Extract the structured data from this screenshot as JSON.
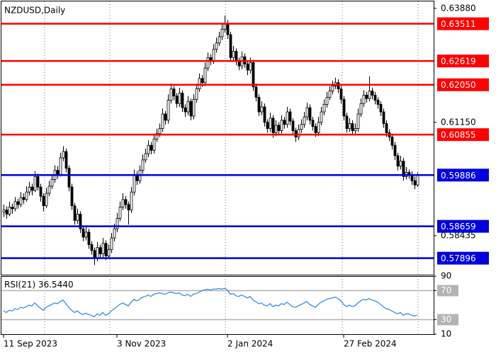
{
  "chart_data": {
    "type": "candlestick",
    "title": "NZDUSD,Daily",
    "up_color": "#ffffff",
    "down_color": "#000000",
    "xlim": [
      -1.25,
      151.75
    ],
    "xticks": [
      {
        "value": 0,
        "label": "11 Sep 2023"
      },
      {
        "value": 40,
        "label": "3 Nov 2023"
      },
      {
        "value": 79,
        "label": "2 Jan 2024"
      },
      {
        "value": 120,
        "label": "27 Feb 2024"
      }
    ],
    "ylim": [
      0.575,
      0.6408
    ],
    "yticks": [
      {
        "value": 0.6388,
        "label": "0.63880"
      },
      {
        "value": 0.6115,
        "label": "0.61150"
      },
      0.58435
    ],
    "levels": [
      {
        "value": 0.63511,
        "color": "#ff0000"
      },
      {
        "value": 0.62619,
        "color": "#ff0000"
      },
      {
        "value": 0.6205,
        "label": "0.62050",
        "color": "#ff0000"
      },
      {
        "value": 0.60855,
        "color": "#ff0000"
      },
      {
        "value": 0.59886,
        "color": "#0000dd"
      },
      {
        "value": 0.58659,
        "color": "#0000dd"
      },
      {
        "value": 0.57896,
        "color": "#0000dd"
      }
    ],
    "candles": [
      [
        0.59,
        0.5918,
        0.5888,
        0.5905
      ],
      [
        0.5905,
        0.5914,
        0.5884,
        0.5895
      ],
      [
        0.5895,
        0.5925,
        0.589,
        0.5912
      ],
      [
        0.5912,
        0.592,
        0.5896,
        0.5908
      ],
      [
        0.5908,
        0.5936,
        0.5902,
        0.5925
      ],
      [
        0.5925,
        0.5932,
        0.5908,
        0.5918
      ],
      [
        0.5918,
        0.5948,
        0.5912,
        0.5935
      ],
      [
        0.5935,
        0.5945,
        0.592,
        0.593
      ],
      [
        0.593,
        0.5962,
        0.5925,
        0.5948
      ],
      [
        0.5948,
        0.5972,
        0.594,
        0.596
      ],
      [
        0.596,
        0.5968,
        0.594,
        0.5952
      ],
      [
        0.5952,
        0.5998,
        0.5948,
        0.5985
      ],
      [
        0.5985,
        0.5992,
        0.5952,
        0.596
      ],
      [
        0.596,
        0.5968,
        0.5925,
        0.5938
      ],
      [
        0.5938,
        0.5945,
        0.5902,
        0.5915
      ],
      [
        0.5915,
        0.5958,
        0.591,
        0.5945
      ],
      [
        0.5945,
        0.5975,
        0.5938,
        0.5962
      ],
      [
        0.5962,
        0.599,
        0.5955,
        0.5978
      ],
      [
        0.5978,
        0.6012,
        0.597,
        0.6
      ],
      [
        0.6,
        0.601,
        0.598,
        0.599
      ],
      [
        0.599,
        0.6042,
        0.5985,
        0.603
      ],
      [
        0.603,
        0.6058,
        0.6022,
        0.6045
      ],
      [
        0.6045,
        0.6052,
        0.5995,
        0.6005
      ],
      [
        0.6005,
        0.6012,
        0.595,
        0.596
      ],
      [
        0.596,
        0.5968,
        0.5905,
        0.5915
      ],
      [
        0.5915,
        0.5922,
        0.587,
        0.588
      ],
      [
        0.588,
        0.5908,
        0.5872,
        0.5895
      ],
      [
        0.5895,
        0.5902,
        0.585,
        0.586
      ],
      [
        0.586,
        0.5868,
        0.583,
        0.584
      ],
      [
        0.584,
        0.5865,
        0.5832,
        0.5852
      ],
      [
        0.5852,
        0.586,
        0.5812,
        0.5822
      ],
      [
        0.5822,
        0.583,
        0.5798,
        0.5808
      ],
      [
        0.5808,
        0.5815,
        0.5773,
        0.579
      ],
      [
        0.579,
        0.5828,
        0.5782,
        0.5815
      ],
      [
        0.5815,
        0.5822,
        0.579,
        0.58
      ],
      [
        0.58,
        0.5838,
        0.5792,
        0.5825
      ],
      [
        0.5825,
        0.5832,
        0.5785,
        0.5795
      ],
      [
        0.5795,
        0.5822,
        0.5788,
        0.581
      ],
      [
        0.581,
        0.585,
        0.5802,
        0.5838
      ],
      [
        0.5838,
        0.5872,
        0.583,
        0.586
      ],
      [
        0.586,
        0.5898,
        0.5852,
        0.5885
      ],
      [
        0.5885,
        0.5925,
        0.5878,
        0.5912
      ],
      [
        0.5912,
        0.5945,
        0.5905,
        0.593
      ],
      [
        0.593,
        0.5938,
        0.5908,
        0.5918
      ],
      [
        0.5918,
        0.5925,
        0.587,
        0.5905
      ],
      [
        0.5905,
        0.596,
        0.5898,
        0.5948
      ],
      [
        0.5948,
        0.6002,
        0.594,
        0.599
      ],
      [
        0.599,
        0.5998,
        0.5965,
        0.5975
      ],
      [
        0.5975,
        0.6012,
        0.5968,
        0.6
      ],
      [
        0.6,
        0.6038,
        0.5992,
        0.6025
      ],
      [
        0.6025,
        0.6052,
        0.6018,
        0.604
      ],
      [
        0.604,
        0.6072,
        0.6032,
        0.606
      ],
      [
        0.606,
        0.6068,
        0.6038,
        0.6048
      ],
      [
        0.6048,
        0.6088,
        0.604,
        0.6075
      ],
      [
        0.6075,
        0.61,
        0.6068,
        0.6088
      ],
      [
        0.6088,
        0.6112,
        0.608,
        0.61
      ],
      [
        0.61,
        0.6148,
        0.6092,
        0.6135
      ],
      [
        0.6135,
        0.6142,
        0.611,
        0.612
      ],
      [
        0.612,
        0.6182,
        0.6112,
        0.6168
      ],
      [
        0.6168,
        0.6208,
        0.616,
        0.6195
      ],
      [
        0.6195,
        0.6202,
        0.6168,
        0.6178
      ],
      [
        0.6178,
        0.6185,
        0.615,
        0.616
      ],
      [
        0.616,
        0.6198,
        0.6152,
        0.6185
      ],
      [
        0.6185,
        0.6192,
        0.614,
        0.615
      ],
      [
        0.615,
        0.6158,
        0.6128,
        0.614
      ],
      [
        0.614,
        0.6178,
        0.6132,
        0.6165
      ],
      [
        0.6165,
        0.6172,
        0.612,
        0.613
      ],
      [
        0.613,
        0.6182,
        0.6122,
        0.617
      ],
      [
        0.617,
        0.6208,
        0.6162,
        0.6195
      ],
      [
        0.6195,
        0.6232,
        0.6188,
        0.622
      ],
      [
        0.622,
        0.6228,
        0.62,
        0.621
      ],
      [
        0.621,
        0.6258,
        0.6202,
        0.6245
      ],
      [
        0.6245,
        0.6282,
        0.6238,
        0.627
      ],
      [
        0.627,
        0.6278,
        0.6252,
        0.6262
      ],
      [
        0.6262,
        0.6302,
        0.6255,
        0.629
      ],
      [
        0.629,
        0.6318,
        0.6282,
        0.6305
      ],
      [
        0.6305,
        0.6332,
        0.6298,
        0.632
      ],
      [
        0.632,
        0.6352,
        0.6312,
        0.6338
      ],
      [
        0.6338,
        0.6371,
        0.633,
        0.635
      ],
      [
        0.635,
        0.636,
        0.6315,
        0.6325
      ],
      [
        0.6325,
        0.6332,
        0.626,
        0.627
      ],
      [
        0.627,
        0.6298,
        0.6262,
        0.6285
      ],
      [
        0.6285,
        0.6292,
        0.6252,
        0.6262
      ],
      [
        0.6262,
        0.627,
        0.624,
        0.625
      ],
      [
        0.625,
        0.6285,
        0.6242,
        0.6272
      ],
      [
        0.6272,
        0.628,
        0.6245,
        0.6255
      ],
      [
        0.6255,
        0.6262,
        0.6228,
        0.624
      ],
      [
        0.624,
        0.627,
        0.6232,
        0.6258
      ],
      [
        0.6258,
        0.6265,
        0.619,
        0.62
      ],
      [
        0.62,
        0.6208,
        0.6165,
        0.6175
      ],
      [
        0.6175,
        0.6182,
        0.613,
        0.614
      ],
      [
        0.614,
        0.6165,
        0.6132,
        0.6152
      ],
      [
        0.6152,
        0.616,
        0.6105,
        0.6115
      ],
      [
        0.6115,
        0.6122,
        0.609,
        0.61
      ],
      [
        0.61,
        0.6138,
        0.6092,
        0.6125
      ],
      [
        0.6125,
        0.6132,
        0.6078,
        0.609
      ],
      [
        0.609,
        0.612,
        0.6082,
        0.6108
      ],
      [
        0.6108,
        0.6115,
        0.6085,
        0.6095
      ],
      [
        0.6095,
        0.6132,
        0.6088,
        0.612
      ],
      [
        0.612,
        0.6128,
        0.61,
        0.611
      ],
      [
        0.611,
        0.6152,
        0.6102,
        0.614
      ],
      [
        0.614,
        0.6148,
        0.6108,
        0.6118
      ],
      [
        0.6118,
        0.6125,
        0.6085,
        0.6095
      ],
      [
        0.6095,
        0.6102,
        0.6068,
        0.608
      ],
      [
        0.608,
        0.611,
        0.6072,
        0.6098
      ],
      [
        0.6098,
        0.6122,
        0.609,
        0.611
      ],
      [
        0.611,
        0.614,
        0.6102,
        0.6128
      ],
      [
        0.6128,
        0.6162,
        0.612,
        0.615
      ],
      [
        0.615,
        0.6158,
        0.611,
        0.612
      ],
      [
        0.612,
        0.6128,
        0.6095,
        0.6105
      ],
      [
        0.6105,
        0.6112,
        0.608,
        0.609
      ],
      [
        0.609,
        0.6128,
        0.6082,
        0.6115
      ],
      [
        0.6115,
        0.6152,
        0.6108,
        0.614
      ],
      [
        0.614,
        0.617,
        0.6132,
        0.6158
      ],
      [
        0.6158,
        0.6188,
        0.615,
        0.6175
      ],
      [
        0.6175,
        0.6202,
        0.6168,
        0.619
      ],
      [
        0.619,
        0.6215,
        0.6182,
        0.6202
      ],
      [
        0.6202,
        0.6222,
        0.6195,
        0.621
      ],
      [
        0.621,
        0.6218,
        0.6185,
        0.6195
      ],
      [
        0.6195,
        0.6202,
        0.616,
        0.617
      ],
      [
        0.617,
        0.6178,
        0.612,
        0.613
      ],
      [
        0.613,
        0.6138,
        0.609,
        0.61
      ],
      [
        0.61,
        0.6125,
        0.6092,
        0.6112
      ],
      [
        0.6112,
        0.612,
        0.6085,
        0.6095
      ],
      [
        0.6095,
        0.6112,
        0.6088,
        0.61
      ],
      [
        0.61,
        0.6148,
        0.6092,
        0.6135
      ],
      [
        0.6135,
        0.6172,
        0.6128,
        0.616
      ],
      [
        0.616,
        0.6192,
        0.6152,
        0.618
      ],
      [
        0.618,
        0.6188,
        0.6162,
        0.6172
      ],
      [
        0.6172,
        0.6225,
        0.6165,
        0.619
      ],
      [
        0.619,
        0.6198,
        0.617,
        0.618
      ],
      [
        0.618,
        0.6188,
        0.6158,
        0.6168
      ],
      [
        0.6168,
        0.6175,
        0.6148,
        0.6158
      ],
      [
        0.6158,
        0.6165,
        0.613,
        0.614
      ],
      [
        0.614,
        0.6148,
        0.6102,
        0.6112
      ],
      [
        0.6112,
        0.612,
        0.608,
        0.609
      ],
      [
        0.609,
        0.6098,
        0.607,
        0.608
      ],
      [
        0.608,
        0.6088,
        0.605,
        0.606
      ],
      [
        0.606,
        0.6068,
        0.6025,
        0.6035
      ],
      [
        0.6035,
        0.6042,
        0.6,
        0.601
      ],
      [
        0.601,
        0.6035,
        0.6002,
        0.6022
      ],
      [
        0.6022,
        0.603,
        0.5975,
        0.5985
      ],
      [
        0.5985,
        0.6008,
        0.5978,
        0.5995
      ],
      [
        0.5995,
        0.6002,
        0.598,
        0.599
      ],
      [
        0.599,
        0.5998,
        0.5965,
        0.5975
      ],
      [
        0.5975,
        0.5985,
        0.5955,
        0.5965
      ],
      [
        0.5965,
        0.5995,
        0.596,
        0.5989
      ]
    ],
    "indicator": {
      "type": "line",
      "title": "RSI(21)",
      "value_label": "36.5440",
      "color": "#3a8de0",
      "ylim": [
        10,
        90
      ],
      "yticks": [
        90,
        70,
        30,
        10
      ],
      "levels": [
        70,
        30
      ],
      "values": [
        42,
        40,
        43,
        42,
        45,
        44,
        47,
        46,
        48,
        50,
        49,
        53,
        49,
        46,
        43,
        47,
        49,
        51,
        53,
        52,
        55,
        57,
        52,
        47,
        43,
        40,
        42,
        39,
        37,
        39,
        37,
        36,
        34,
        38,
        36,
        40,
        36,
        38,
        42,
        45,
        48,
        51,
        53,
        51,
        49,
        54,
        58,
        56,
        58,
        61,
        62,
        64,
        62,
        65,
        66,
        67,
        66,
        65,
        67,
        68,
        67,
        66,
        67,
        64,
        63,
        65,
        62,
        65,
        66,
        68,
        70,
        71,
        72,
        71,
        72,
        72,
        73,
        72,
        73,
        71,
        65,
        66,
        63,
        62,
        64,
        62,
        60,
        62,
        57,
        55,
        52,
        53,
        50,
        49,
        52,
        48,
        50,
        49,
        52,
        51,
        54,
        51,
        48,
        47,
        49,
        51,
        53,
        55,
        51,
        49,
        47,
        51,
        54,
        56,
        58,
        59,
        60,
        61,
        59,
        56,
        51,
        48,
        50,
        48,
        49,
        53,
        56,
        58,
        57,
        59,
        57,
        56,
        54,
        51,
        48,
        45,
        44,
        42,
        40,
        38,
        40,
        36,
        38,
        38,
        36,
        35,
        36.544
      ]
    }
  }
}
